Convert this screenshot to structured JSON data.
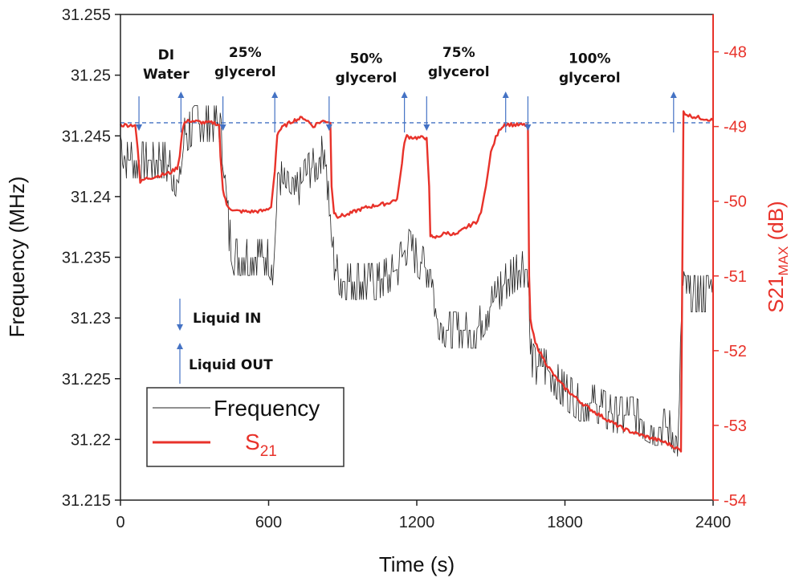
{
  "chart_data": {
    "type": "line",
    "xlabel": "Time (s)",
    "ylabel": "Frequency (MHz)",
    "y2label": "S21",
    "y2label_sub": "MAX",
    "y2label_unit": " (dB)",
    "xlim": [
      0,
      2400
    ],
    "ylim": [
      31.215,
      31.255
    ],
    "y2lim": [
      -54,
      -47.5
    ],
    "x_ticks": [
      "0",
      "600",
      "1200",
      "1800",
      "2400"
    ],
    "x_tick_values": [
      0,
      600,
      1200,
      1800,
      2400
    ],
    "y_ticks": [
      "31.215",
      "31.22",
      "31.225",
      "31.23",
      "31.235",
      "31.24",
      "31.245",
      "31.25",
      "31.255"
    ],
    "y_tick_values": [
      31.215,
      31.22,
      31.225,
      31.23,
      31.235,
      31.24,
      31.245,
      31.25,
      31.255
    ],
    "y2_ticks": [
      "-54",
      "-53",
      "-52",
      "-51",
      "-50",
      "-49",
      "-48"
    ],
    "y2_tick_values": [
      -54,
      -53,
      -52,
      -51,
      -50,
      -49,
      -48
    ],
    "reference_line": {
      "y2": -48.95,
      "style": "dashed",
      "color": "#4472c4"
    },
    "series": [
      {
        "name": "Frequency",
        "axis": "left",
        "color": "#222222",
        "style": "noisy-step",
        "x": [
          0,
          20,
          40,
          80,
          120,
          180,
          240,
          260,
          300,
          340,
          380,
          400,
          420,
          440,
          460,
          500,
          560,
          600,
          620,
          640,
          660,
          700,
          760,
          800,
          830,
          850,
          870,
          900,
          960,
          1040,
          1120,
          1160,
          1200,
          1240,
          1260,
          1280,
          1320,
          1400,
          1440,
          1500,
          1560,
          1620,
          1650,
          1660,
          1680,
          1720,
          1760,
          1800,
          1860,
          1920,
          2000,
          2080,
          2160,
          2220,
          2260,
          2275,
          2285,
          2300,
          2350,
          2380,
          2400
        ],
        "y": [
          31.245,
          31.243,
          31.243,
          31.243,
          31.243,
          31.243,
          31.241,
          31.245,
          31.246,
          31.246,
          31.246,
          31.246,
          31.243,
          31.237,
          31.235,
          31.235,
          31.235,
          31.235,
          31.234,
          31.242,
          31.241,
          31.24,
          31.242,
          31.243,
          31.244,
          31.237,
          31.234,
          31.233,
          31.233,
          31.233,
          31.234,
          31.236,
          31.235,
          31.234,
          31.234,
          31.23,
          31.229,
          31.229,
          31.229,
          31.231,
          31.233,
          31.234,
          31.234,
          31.227,
          31.226,
          31.226,
          31.225,
          31.224,
          31.223,
          31.223,
          31.222,
          31.222,
          31.221,
          31.221,
          31.22,
          31.233,
          31.232,
          31.232,
          31.232,
          31.232,
          31.234
        ]
      },
      {
        "name": "S21",
        "axis": "right",
        "color": "#e8322a",
        "style": "smooth",
        "x": [
          0,
          30,
          60,
          70,
          80,
          100,
          140,
          200,
          230,
          240,
          250,
          260,
          280,
          300,
          340,
          380,
          400,
          405,
          415,
          430,
          460,
          520,
          580,
          610,
          625,
          635,
          645,
          660,
          700,
          740,
          760,
          780,
          800,
          820,
          840,
          850,
          855,
          865,
          880,
          920,
          960,
          1000,
          1040,
          1080,
          1120,
          1140,
          1150,
          1160,
          1170,
          1200,
          1240,
          1250,
          1255,
          1265,
          1280,
          1320,
          1360,
          1400,
          1440,
          1460,
          1480,
          1500,
          1520,
          1540,
          1555,
          1570,
          1600,
          1640,
          1650,
          1655,
          1660,
          1680,
          1720,
          1760,
          1800,
          1840,
          1880,
          1920,
          1960,
          2000,
          2040,
          2080,
          2120,
          2160,
          2200,
          2240,
          2260,
          2270,
          2275,
          2280,
          2300,
          2340,
          2380,
          2400
        ],
        "y": [
          -48.98,
          -48.98,
          -48.98,
          -49.3,
          -49.75,
          -49.7,
          -49.67,
          -49.62,
          -49.55,
          -49.4,
          -49.05,
          -48.95,
          -48.92,
          -48.93,
          -48.95,
          -48.95,
          -48.98,
          -49.4,
          -49.85,
          -50.05,
          -50.13,
          -50.14,
          -50.13,
          -50.08,
          -49.6,
          -49.1,
          -49.05,
          -49.0,
          -48.92,
          -48.88,
          -48.93,
          -49.0,
          -48.95,
          -48.93,
          -48.93,
          -48.95,
          -49.8,
          -50.15,
          -50.2,
          -50.18,
          -50.12,
          -50.08,
          -50.05,
          -50.03,
          -49.97,
          -49.5,
          -49.2,
          -49.13,
          -49.14,
          -49.15,
          -49.15,
          -49.8,
          -50.45,
          -50.5,
          -50.48,
          -50.42,
          -50.45,
          -50.35,
          -50.28,
          -50.15,
          -49.8,
          -49.35,
          -49.15,
          -49.02,
          -48.97,
          -48.97,
          -48.98,
          -48.98,
          -48.98,
          -51.0,
          -51.6,
          -51.9,
          -52.15,
          -52.35,
          -52.5,
          -52.62,
          -52.73,
          -52.82,
          -52.9,
          -52.98,
          -53.05,
          -53.1,
          -53.14,
          -53.18,
          -53.22,
          -53.28,
          -53.32,
          -53.35,
          -51.0,
          -48.8,
          -48.85,
          -48.88,
          -48.9,
          -48.92
        ]
      }
    ],
    "annotations": [
      {
        "lines": [
          "DI",
          "Water"
        ],
        "x": 185,
        "y": 31.2513
      },
      {
        "lines": [
          "25%",
          "glycerol"
        ],
        "x": 505,
        "y": 31.2515
      },
      {
        "lines": [
          "50%",
          "glycerol"
        ],
        "x": 995,
        "y": 31.251
      },
      {
        "lines": [
          "75%",
          "glycerol"
        ],
        "x": 1370,
        "y": 31.2515
      },
      {
        "lines": [
          "100%",
          "glycerol"
        ],
        "x": 1900,
        "y": 31.251
      }
    ],
    "arrows_in": [
      75,
      415,
      845,
      1240,
      1650
    ],
    "arrows_out": [
      245,
      625,
      1150,
      1560,
      2240
    ],
    "arrow_legend": {
      "in_label": "Liquid IN",
      "out_label": "Liquid OUT"
    },
    "legend": {
      "position": "bottom-left",
      "entries": [
        {
          "label": "Frequency",
          "color": "#222222"
        },
        {
          "label": "S",
          "sub": "21",
          "color": "#e8322a"
        }
      ]
    }
  }
}
